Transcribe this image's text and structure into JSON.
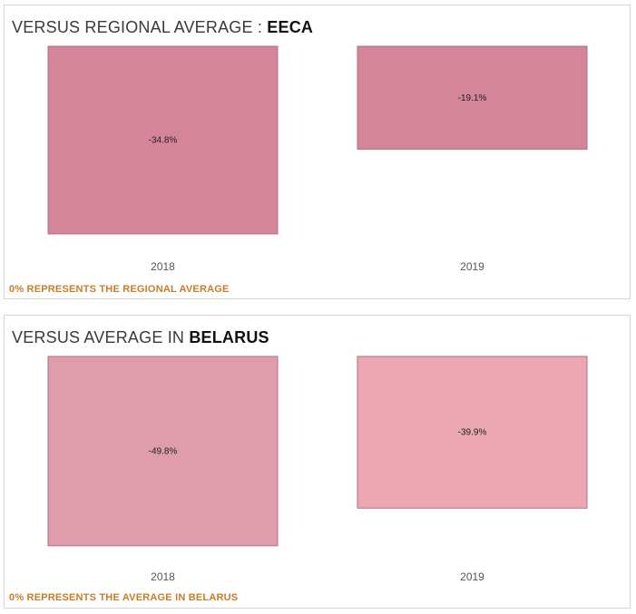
{
  "theme": {
    "footnote_color": "#c47d2a"
  },
  "chart_data": [
    {
      "type": "bar",
      "title": "VERSUS REGIONAL AVERAGE :",
      "title_bold": "EECA",
      "categories": [
        "2018",
        "2019"
      ],
      "values": [
        -34.8,
        -19.1
      ],
      "data_labels": [
        "-34.8%",
        "-19.1%"
      ],
      "colors": [
        "#d4859a",
        "#d4859a"
      ],
      "ylim": [
        -37,
        0
      ],
      "footnote": "0% REPRESENTS THE REGIONAL AVERAGE"
    },
    {
      "type": "bar",
      "title": "VERSUS AVERAGE IN",
      "title_bold": "BELARUS",
      "categories": [
        "2018",
        "2019"
      ],
      "values": [
        -49.8,
        -39.9
      ],
      "data_labels": [
        "-49.8%",
        "-39.9%"
      ],
      "colors": [
        "#de9cac",
        "#eba8b2"
      ],
      "ylim": [
        -52,
        0
      ],
      "footnote": "0%  REPRESENTS THE AVERAGE IN BELARUS"
    }
  ]
}
